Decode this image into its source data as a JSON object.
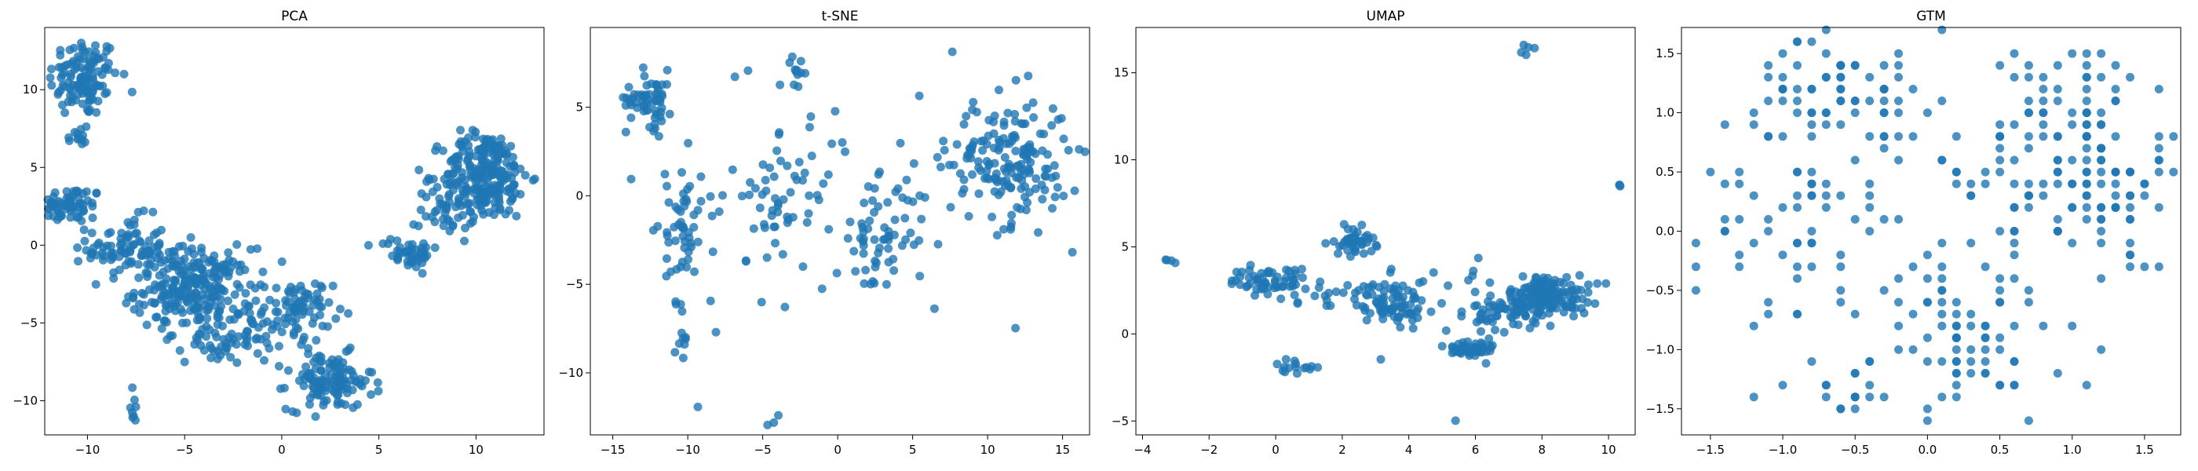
{
  "figure": {
    "point_color": "#1f77b4",
    "point_alpha": 0.8
  },
  "chart_data": [
    {
      "type": "scatter",
      "title": "PCA",
      "xlabel": "",
      "ylabel": "",
      "xlim": [
        -12.2,
        13.5
      ],
      "ylim": [
        -12.2,
        14.0
      ],
      "xticks": [
        -10,
        -5,
        0,
        5,
        10
      ],
      "yticks": [
        -10,
        -5,
        0,
        5,
        10
      ],
      "tick_labels_x": [
        "−10",
        "−5",
        "0",
        "5",
        "10"
      ],
      "tick_labels_y": [
        "−10",
        "−5",
        "0",
        "5",
        "10"
      ],
      "grid": false,
      "legend": "none",
      "clusters": [
        {
          "cx": -10.2,
          "cy": 10.8,
          "sx": 0.9,
          "sy": 1.3,
          "n": 120
        },
        {
          "cx": -10.5,
          "cy": 6.8,
          "sx": 0.3,
          "sy": 0.6,
          "n": 12
        },
        {
          "cx": -11.0,
          "cy": 2.6,
          "sx": 0.9,
          "sy": 0.6,
          "n": 70
        },
        {
          "cx": -8.0,
          "cy": -0.2,
          "sx": 1.0,
          "sy": 1.0,
          "n": 90
        },
        {
          "cx": -4.5,
          "cy": -2.8,
          "sx": 1.5,
          "sy": 1.3,
          "n": 260
        },
        {
          "cx": -2.5,
          "cy": -6.0,
          "sx": 1.2,
          "sy": 0.8,
          "n": 60
        },
        {
          "cx": 0.8,
          "cy": -4.2,
          "sx": 0.9,
          "sy": 1.0,
          "n": 80
        },
        {
          "cx": 2.5,
          "cy": -8.8,
          "sx": 1.1,
          "sy": 0.9,
          "n": 120
        },
        {
          "cx": 6.5,
          "cy": -0.5,
          "sx": 0.8,
          "sy": 0.5,
          "n": 45
        },
        {
          "cx": 8.5,
          "cy": 2.3,
          "sx": 0.7,
          "sy": 1.0,
          "n": 40
        },
        {
          "cx": 10.5,
          "cy": 4.5,
          "sx": 1.1,
          "sy": 1.4,
          "n": 240
        },
        {
          "cx": -7.7,
          "cy": -10.0,
          "sx": 0.2,
          "sy": 0.8,
          "n": 8
        }
      ]
    },
    {
      "type": "scatter",
      "title": "t-SNE",
      "xlabel": "",
      "ylabel": "",
      "xlim": [
        -16.5,
        16.8
      ],
      "ylim": [
        -13.5,
        9.5
      ],
      "xticks": [
        -15,
        -10,
        -5,
        0,
        5,
        10,
        15
      ],
      "yticks": [
        -10,
        -5,
        0,
        5
      ],
      "tick_labels_x": [
        "−15",
        "−10",
        "−5",
        "0",
        "5",
        "10",
        "15"
      ],
      "tick_labels_y": [
        "−10",
        "−5",
        "0",
        "5"
      ],
      "grid": false,
      "legend": "none",
      "clusters": [
        {
          "cx": -12.5,
          "cy": 5.5,
          "sx": 0.8,
          "sy": 0.8,
          "n": 60
        },
        {
          "cx": -10.3,
          "cy": -2.0,
          "sx": 0.6,
          "sy": 2.0,
          "n": 50
        },
        {
          "cx": -10.5,
          "cy": -8.0,
          "sx": 0.3,
          "sy": 0.5,
          "n": 8
        },
        {
          "cx": -3.5,
          "cy": 0.0,
          "sx": 1.5,
          "sy": 1.5,
          "n": 45
        },
        {
          "cx": -2.5,
          "cy": 7.0,
          "sx": 0.5,
          "sy": 0.4,
          "n": 10
        },
        {
          "cx": 2.5,
          "cy": -2.5,
          "sx": 1.3,
          "sy": 1.6,
          "n": 55
        },
        {
          "cx": 11.5,
          "cy": 2.0,
          "sx": 2.0,
          "sy": 1.8,
          "n": 170
        },
        {
          "cx": 0.0,
          "cy": 0.0,
          "sx": 8.0,
          "sy": 4.5,
          "n": 60
        },
        {
          "cx": -4.2,
          "cy": -12.5,
          "sx": 0.3,
          "sy": 0.2,
          "n": 3
        }
      ]
    },
    {
      "type": "scatter",
      "title": "UMAP",
      "xlabel": "",
      "ylabel": "",
      "xlim": [
        -4.2,
        10.8
      ],
      "ylim": [
        -5.8,
        17.6
      ],
      "xticks": [
        -4,
        -2,
        0,
        2,
        4,
        6,
        8,
        10
      ],
      "yticks": [
        -5,
        0,
        5,
        10,
        15
      ],
      "tick_labels_x": [
        "−4",
        "−2",
        "0",
        "2",
        "4",
        "6",
        "8",
        "10"
      ],
      "tick_labels_y": [
        "−5",
        "0",
        "5",
        "10",
        "15"
      ],
      "grid": false,
      "legend": "none",
      "clusters": [
        {
          "cx": -3.2,
          "cy": 4.2,
          "sx": 0.1,
          "sy": 0.1,
          "n": 4
        },
        {
          "cx": -0.2,
          "cy": 3.0,
          "sx": 0.6,
          "sy": 0.4,
          "n": 60
        },
        {
          "cx": 1.2,
          "cy": 2.4,
          "sx": 0.5,
          "sy": 0.4,
          "n": 12
        },
        {
          "cx": 2.4,
          "cy": 5.3,
          "sx": 0.3,
          "sy": 0.4,
          "n": 45
        },
        {
          "cx": 3.4,
          "cy": 1.8,
          "sx": 0.5,
          "sy": 0.6,
          "n": 80
        },
        {
          "cx": 0.6,
          "cy": -1.8,
          "sx": 0.3,
          "sy": 0.2,
          "n": 15
        },
        {
          "cx": 5.8,
          "cy": -0.9,
          "sx": 0.4,
          "sy": 0.3,
          "n": 50
        },
        {
          "cx": 7.0,
          "cy": 1.3,
          "sx": 0.5,
          "sy": 0.6,
          "n": 60
        },
        {
          "cx": 8.2,
          "cy": 2.2,
          "sx": 0.6,
          "sy": 0.6,
          "n": 150
        },
        {
          "cx": 7.5,
          "cy": 16.3,
          "sx": 0.1,
          "sy": 0.2,
          "n": 5
        },
        {
          "cx": 10.3,
          "cy": 8.5,
          "sx": 0.05,
          "sy": 0.05,
          "n": 3
        },
        {
          "cx": 5.4,
          "cy": -5.0,
          "sx": 0.02,
          "sy": 0.02,
          "n": 1
        },
        {
          "cx": 4.5,
          "cy": 2.0,
          "sx": 2.5,
          "sy": 1.5,
          "n": 25
        }
      ]
    },
    {
      "type": "scatter",
      "title": "GTM",
      "xlabel": "",
      "ylabel": "",
      "xlim": [
        -1.7,
        1.75
      ],
      "ylim": [
        -1.72,
        1.72
      ],
      "xticks": [
        -1.5,
        -1.0,
        -0.5,
        0.0,
        0.5,
        1.0,
        1.5
      ],
      "yticks": [
        -1.5,
        -1.0,
        -0.5,
        0.0,
        0.5,
        1.0,
        1.5
      ],
      "tick_labels_x": [
        "−1.5",
        "−1.0",
        "−0.5",
        "0.0",
        "0.5",
        "1.0",
        "1.5"
      ],
      "tick_labels_y": [
        "−1.5",
        "−1.0",
        "−0.5",
        "0.0",
        "0.5",
        "1.0",
        "1.5"
      ],
      "grid": false,
      "legend": "none",
      "grid_step": 0.1,
      "clusters": [
        {
          "cx": -0.6,
          "cy": 1.2,
          "sx": 0.3,
          "sy": 0.2,
          "n": 60
        },
        {
          "cx": 1.05,
          "cy": 0.7,
          "sx": 0.35,
          "sy": 0.45,
          "n": 110
        },
        {
          "cx": -1.0,
          "cy": 0.2,
          "sx": 0.3,
          "sy": 0.4,
          "n": 50
        },
        {
          "cx": 0.3,
          "cy": -1.0,
          "sx": 0.4,
          "sy": 0.35,
          "n": 60
        },
        {
          "cx": -0.5,
          "cy": -1.35,
          "sx": 0.15,
          "sy": 0.15,
          "n": 15
        },
        {
          "cx": 1.4,
          "cy": 0.2,
          "sx": 0.2,
          "sy": 0.3,
          "n": 25
        },
        {
          "cx": 0.0,
          "cy": 0.0,
          "sx": 0.9,
          "sy": 0.9,
          "n": 90
        }
      ]
    }
  ]
}
